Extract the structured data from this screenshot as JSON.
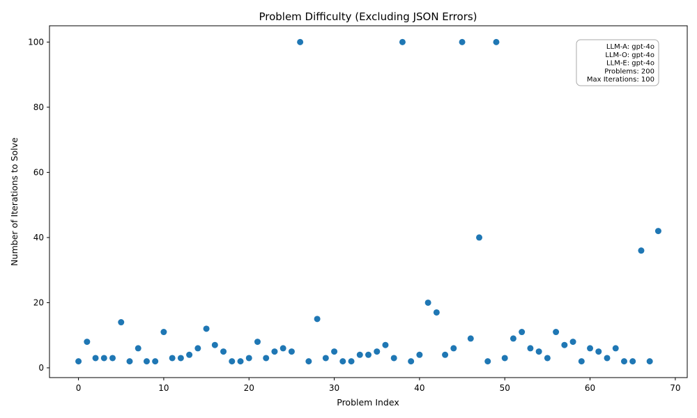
{
  "chart_data": {
    "type": "scatter",
    "title": "Problem Difficulty (Excluding JSON Errors)",
    "xlabel": "Problem Index",
    "ylabel": "Number of Iterations to Solve",
    "xlim": [
      -3.4,
      71.4
    ],
    "ylim": [
      -3,
      105
    ],
    "xticks": [
      0,
      10,
      20,
      30,
      40,
      50,
      60,
      70
    ],
    "yticks": [
      0,
      20,
      40,
      60,
      80,
      100
    ],
    "grid": false,
    "marker_color": "#1f77b4",
    "x": [
      0,
      1,
      2,
      3,
      4,
      5,
      6,
      7,
      8,
      9,
      10,
      11,
      12,
      13,
      14,
      15,
      16,
      17,
      18,
      19,
      20,
      21,
      22,
      23,
      24,
      25,
      26,
      27,
      28,
      29,
      30,
      31,
      32,
      33,
      34,
      35,
      36,
      37,
      38,
      39,
      40,
      41,
      42,
      43,
      44,
      45,
      46,
      47,
      48,
      49,
      50,
      51,
      52,
      53,
      54,
      55,
      56,
      57,
      58,
      59,
      60,
      61,
      62,
      63,
      64,
      65,
      66,
      67,
      68
    ],
    "y": [
      2,
      8,
      3,
      3,
      3,
      14,
      2,
      6,
      2,
      2,
      11,
      3,
      3,
      4,
      6,
      12,
      7,
      5,
      2,
      2,
      3,
      8,
      3,
      5,
      6,
      5,
      100,
      2,
      15,
      3,
      5,
      2,
      2,
      4,
      4,
      5,
      7,
      3,
      100,
      2,
      4,
      20,
      17,
      4,
      6,
      100,
      9,
      40,
      2,
      100,
      3,
      9,
      11,
      6,
      5,
      3,
      11,
      7,
      8,
      2,
      6,
      5,
      3,
      6,
      2,
      2,
      36,
      2,
      42
    ],
    "info_box": {
      "placement": "top-right",
      "lines": [
        "LLM-A: gpt-4o",
        "LLM-O: gpt-4o",
        "LLM-E: gpt-4o",
        "Problems: 200",
        "Max Iterations: 100"
      ]
    }
  }
}
